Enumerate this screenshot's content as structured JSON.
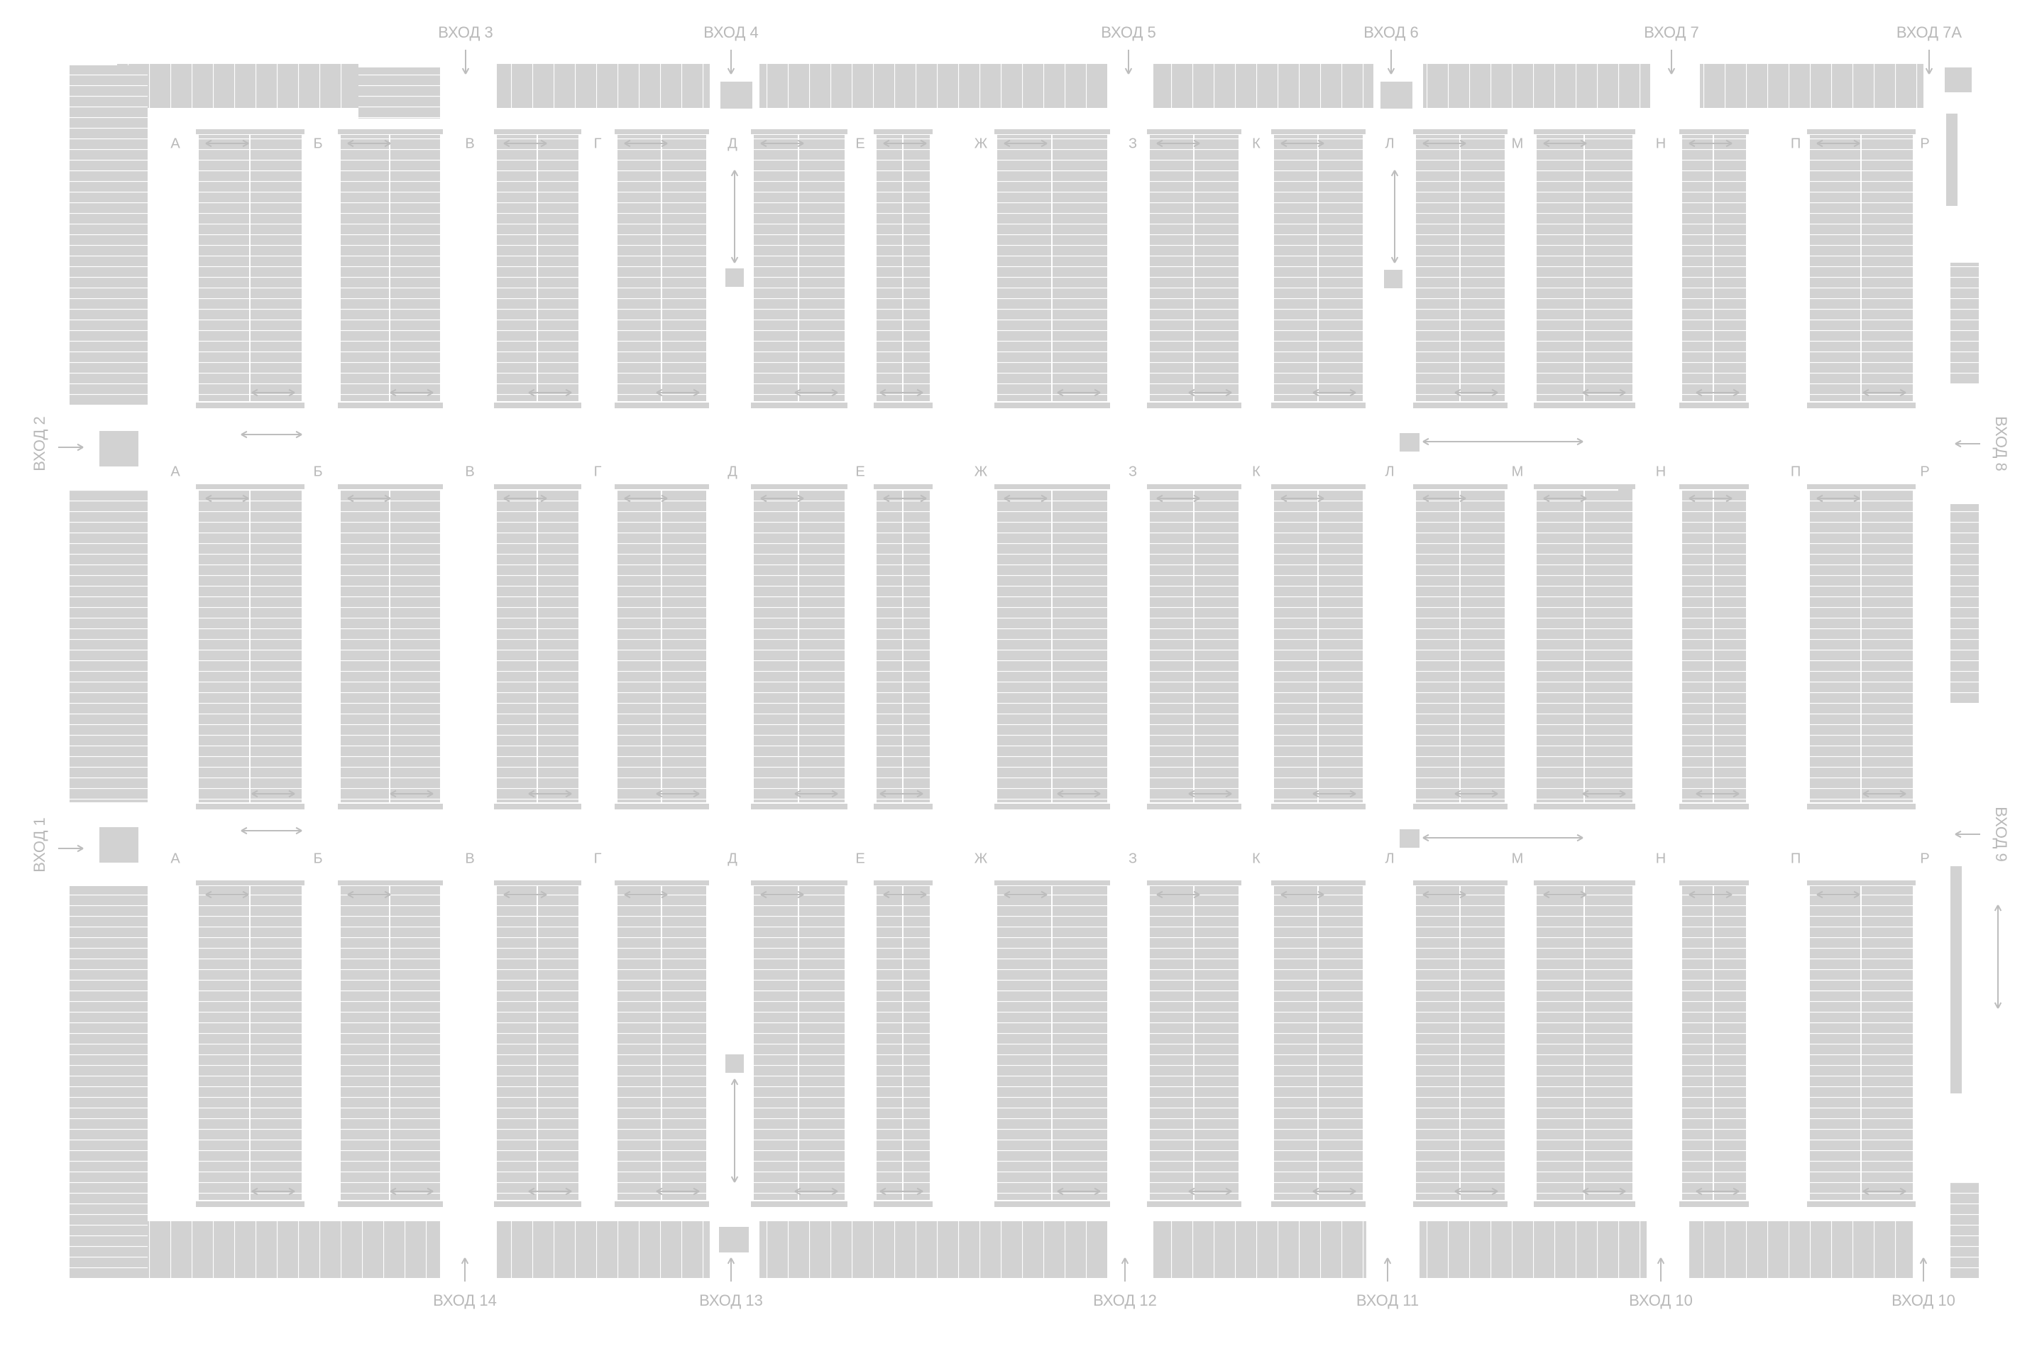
{
  "map": {
    "colors": {
      "background": "#ffffff",
      "stall_fill": "#d2d2d2",
      "stall_line": "#ffffff",
      "label_text": "#b9b9b9",
      "arrow_line": "#bdbdbd"
    },
    "row_letters": [
      "А",
      "Б",
      "В",
      "Г",
      "Д",
      "Е",
      "Ж",
      "З",
      "К",
      "Л",
      "М",
      "Н",
      "П",
      "Р"
    ],
    "top_entrances": [
      "ВХОД 3",
      "ВХОД 4",
      "ВХОД 5",
      "ВХОД 6",
      "ВХОД 7",
      "ВХОД 7А"
    ],
    "bottom_entrances": [
      "ВХОД 14",
      "ВХОД 13",
      "ВХОД 12",
      "ВХОД 11",
      "ВХОД 10",
      "ВХОД 10"
    ],
    "left_entrances": [
      "ВХОД 2",
      "ВХОД 1"
    ],
    "right_entrances": [
      "ВХОД 8",
      "ВХОД 9"
    ],
    "icons": {
      "entrance_arrow": "arrow-icon",
      "direction_arrow": "double-arrow-icon"
    }
  }
}
